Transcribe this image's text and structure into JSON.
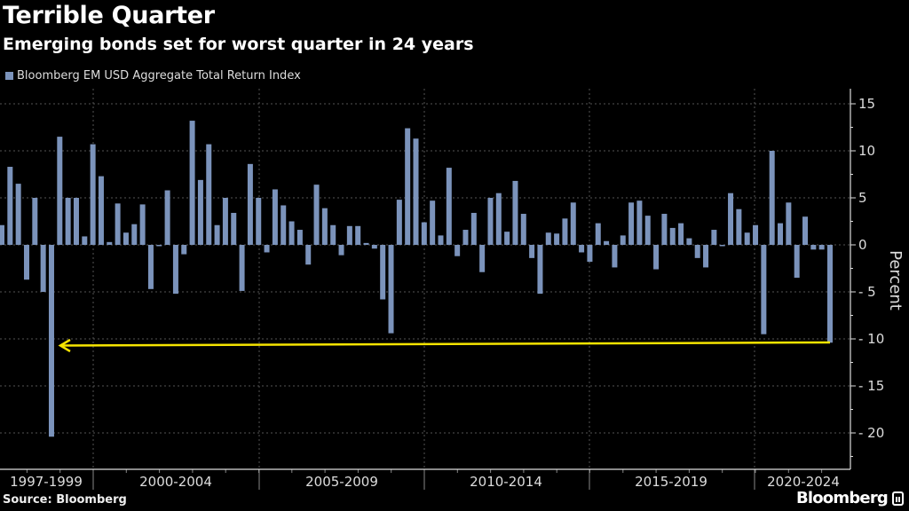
{
  "header": {
    "title": "Terrible Quarter",
    "subtitle": "Emerging bonds set for worst quarter in 24 years"
  },
  "footer": {
    "source": "Source: Bloomberg",
    "logo": "Bloomberg"
  },
  "colors": {
    "bar": "#7b93bb",
    "annotation_arrow": "#f5e400",
    "background": "#000000"
  },
  "chart_data": {
    "type": "bar",
    "title": "Terrible Quarter",
    "subtitle": "Emerging bonds set for worst quarter in 24 years",
    "legend": [
      "Bloomberg EM USD Aggregate Total Return Index"
    ],
    "legend_position": "top-left",
    "ylabel": "Percent",
    "ylim": [
      -24,
      16
    ],
    "yticks": [
      15,
      10,
      5,
      0,
      -5,
      -10,
      -15,
      -20
    ],
    "y_axis_side": "right",
    "grid": true,
    "x_period_labels": [
      "1997-1999",
      "2000-2004",
      "2005-2009",
      "2010-2014",
      "2015-2019",
      "2020-2024"
    ],
    "series": [
      {
        "name": "Bloomberg EM USD Aggregate Total Return Index",
        "values": [
          2.1,
          8.3,
          6.5,
          -3.7,
          5.0,
          -5.0,
          -20.4,
          11.5,
          5.0,
          5.0,
          0.9,
          10.7,
          7.3,
          0.3,
          4.4,
          1.3,
          2.2,
          4.3,
          -4.7,
          0.0,
          5.8,
          -5.2,
          -1.0,
          13.2,
          6.9,
          10.7,
          2.1,
          5.0,
          3.4,
          -4.9,
          8.6,
          5.0,
          -0.8,
          5.9,
          4.2,
          2.5,
          1.6,
          -2.1,
          6.4,
          3.9,
          2.1,
          -1.1,
          2.0,
          2.0,
          0.2,
          -0.4,
          -5.8,
          -9.4,
          4.8,
          12.4,
          11.3,
          2.4,
          4.7,
          1.0,
          8.2,
          -1.2,
          1.6,
          3.4,
          -2.9,
          5.0,
          5.5,
          1.4,
          6.8,
          3.3,
          -1.4,
          -5.2,
          1.3,
          1.2,
          2.8,
          4.5,
          -0.8,
          -1.8,
          2.3,
          0.4,
          -2.4,
          1.0,
          4.5,
          4.7,
          3.1,
          -2.6,
          3.3,
          1.8,
          2.3,
          0.7,
          -1.4,
          -2.4,
          1.6,
          -0.1,
          5.5,
          3.8,
          1.3,
          2.1,
          -9.5,
          10.0,
          2.3,
          4.5,
          -3.5,
          3.0,
          -0.5,
          -0.5,
          -10.4
        ]
      }
    ],
    "annotations": [
      {
        "type": "arrow",
        "from_value": -10.4,
        "to_value": -20.4,
        "note": "latest quarter compared with 1998 low"
      }
    ]
  }
}
